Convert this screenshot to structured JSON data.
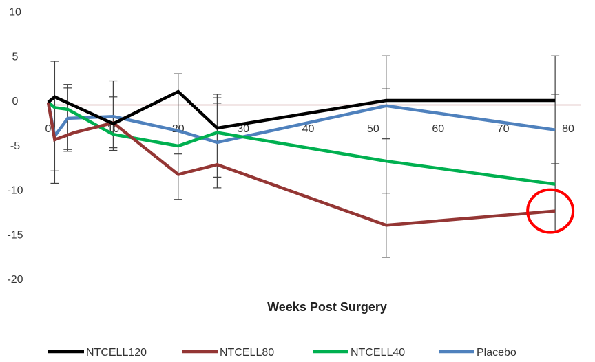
{
  "chart_data": {
    "type": "line",
    "xlabel": "Weeks Post Surgery",
    "ylabel": "",
    "xlim": [
      0,
      80
    ],
    "ylim": [
      -20,
      10
    ],
    "x_ticks": [
      "0",
      "10",
      "20",
      "30",
      "40",
      "50",
      "60",
      "70",
      "80"
    ],
    "y_ticks": [
      "10",
      "5",
      "0",
      "-5",
      "-10",
      "-15",
      "-20"
    ],
    "grid": false,
    "legend_position": "bottom",
    "series": [
      {
        "name": "NTCELL120",
        "color": "#000000",
        "points": [
          [
            0,
            -0.2
          ],
          [
            1,
            0.4
          ],
          [
            10,
            -2.6
          ],
          [
            20,
            1.0
          ],
          [
            26,
            -3.1
          ],
          [
            52,
            0.0
          ],
          [
            78,
            0.0
          ]
        ]
      },
      {
        "name": "NTCELL80",
        "color": "#943634",
        "points": [
          [
            0,
            -0.2
          ],
          [
            1,
            -4.4
          ],
          [
            4,
            -3.6
          ],
          [
            10,
            -2.5
          ],
          [
            20,
            -8.3
          ],
          [
            26,
            -7.2
          ],
          [
            52,
            -14.0
          ],
          [
            78,
            -12.4
          ]
        ]
      },
      {
        "name": "NTCELL40",
        "color": "#00B050",
        "points": [
          [
            0,
            -0.2
          ],
          [
            1,
            -0.8
          ],
          [
            3,
            -1.0
          ],
          [
            10,
            -3.8
          ],
          [
            20,
            -5.1
          ],
          [
            26,
            -3.6
          ],
          [
            52,
            -6.8
          ],
          [
            78,
            -9.4
          ]
        ]
      },
      {
        "name": "Placebo",
        "color": "#4F81BD",
        "points": [
          [
            0,
            -0.2
          ],
          [
            1,
            -4.0
          ],
          [
            3,
            -2.0
          ],
          [
            10,
            -1.8
          ],
          [
            20,
            -3.4
          ],
          [
            26,
            -4.7
          ],
          [
            52,
            -0.6
          ],
          [
            78,
            -3.3
          ]
        ]
      }
    ],
    "error_bars": [
      {
        "x": 1,
        "low": -9.3,
        "high": 4.4,
        "caps": [
          4.4,
          -7.9,
          -9.3
        ]
      },
      {
        "x": 3,
        "low": -5.7,
        "high": 1.8,
        "caps": [
          1.8,
          1.4,
          -5.5,
          -5.7
        ]
      },
      {
        "x": 10,
        "low": -5.6,
        "high": 2.2,
        "caps": [
          2.2,
          0.4,
          -5.3,
          -5.6
        ]
      },
      {
        "x": 20,
        "low": -11.1,
        "high": 3.0,
        "caps": [
          3.0,
          -6.0,
          -11.1
        ]
      },
      {
        "x": 26,
        "low": -9.8,
        "high": 0.7,
        "caps": [
          0.7,
          0.3,
          -0.3,
          -8.6,
          -9.8
        ]
      },
      {
        "x": 52,
        "low": -17.6,
        "high": 5.0,
        "caps": [
          5.0,
          1.3,
          -4.3,
          -10.4,
          -17.6
        ]
      },
      {
        "x": 78,
        "low": -14.7,
        "high": 5.0,
        "caps": [
          5.0,
          0.7,
          -7.1,
          -14.7
        ]
      }
    ],
    "reference_line": {
      "y": -0.5,
      "color": "#943634"
    },
    "annotation": {
      "type": "circle",
      "x": 78,
      "y": -12.4,
      "color": "#FF0000"
    }
  }
}
